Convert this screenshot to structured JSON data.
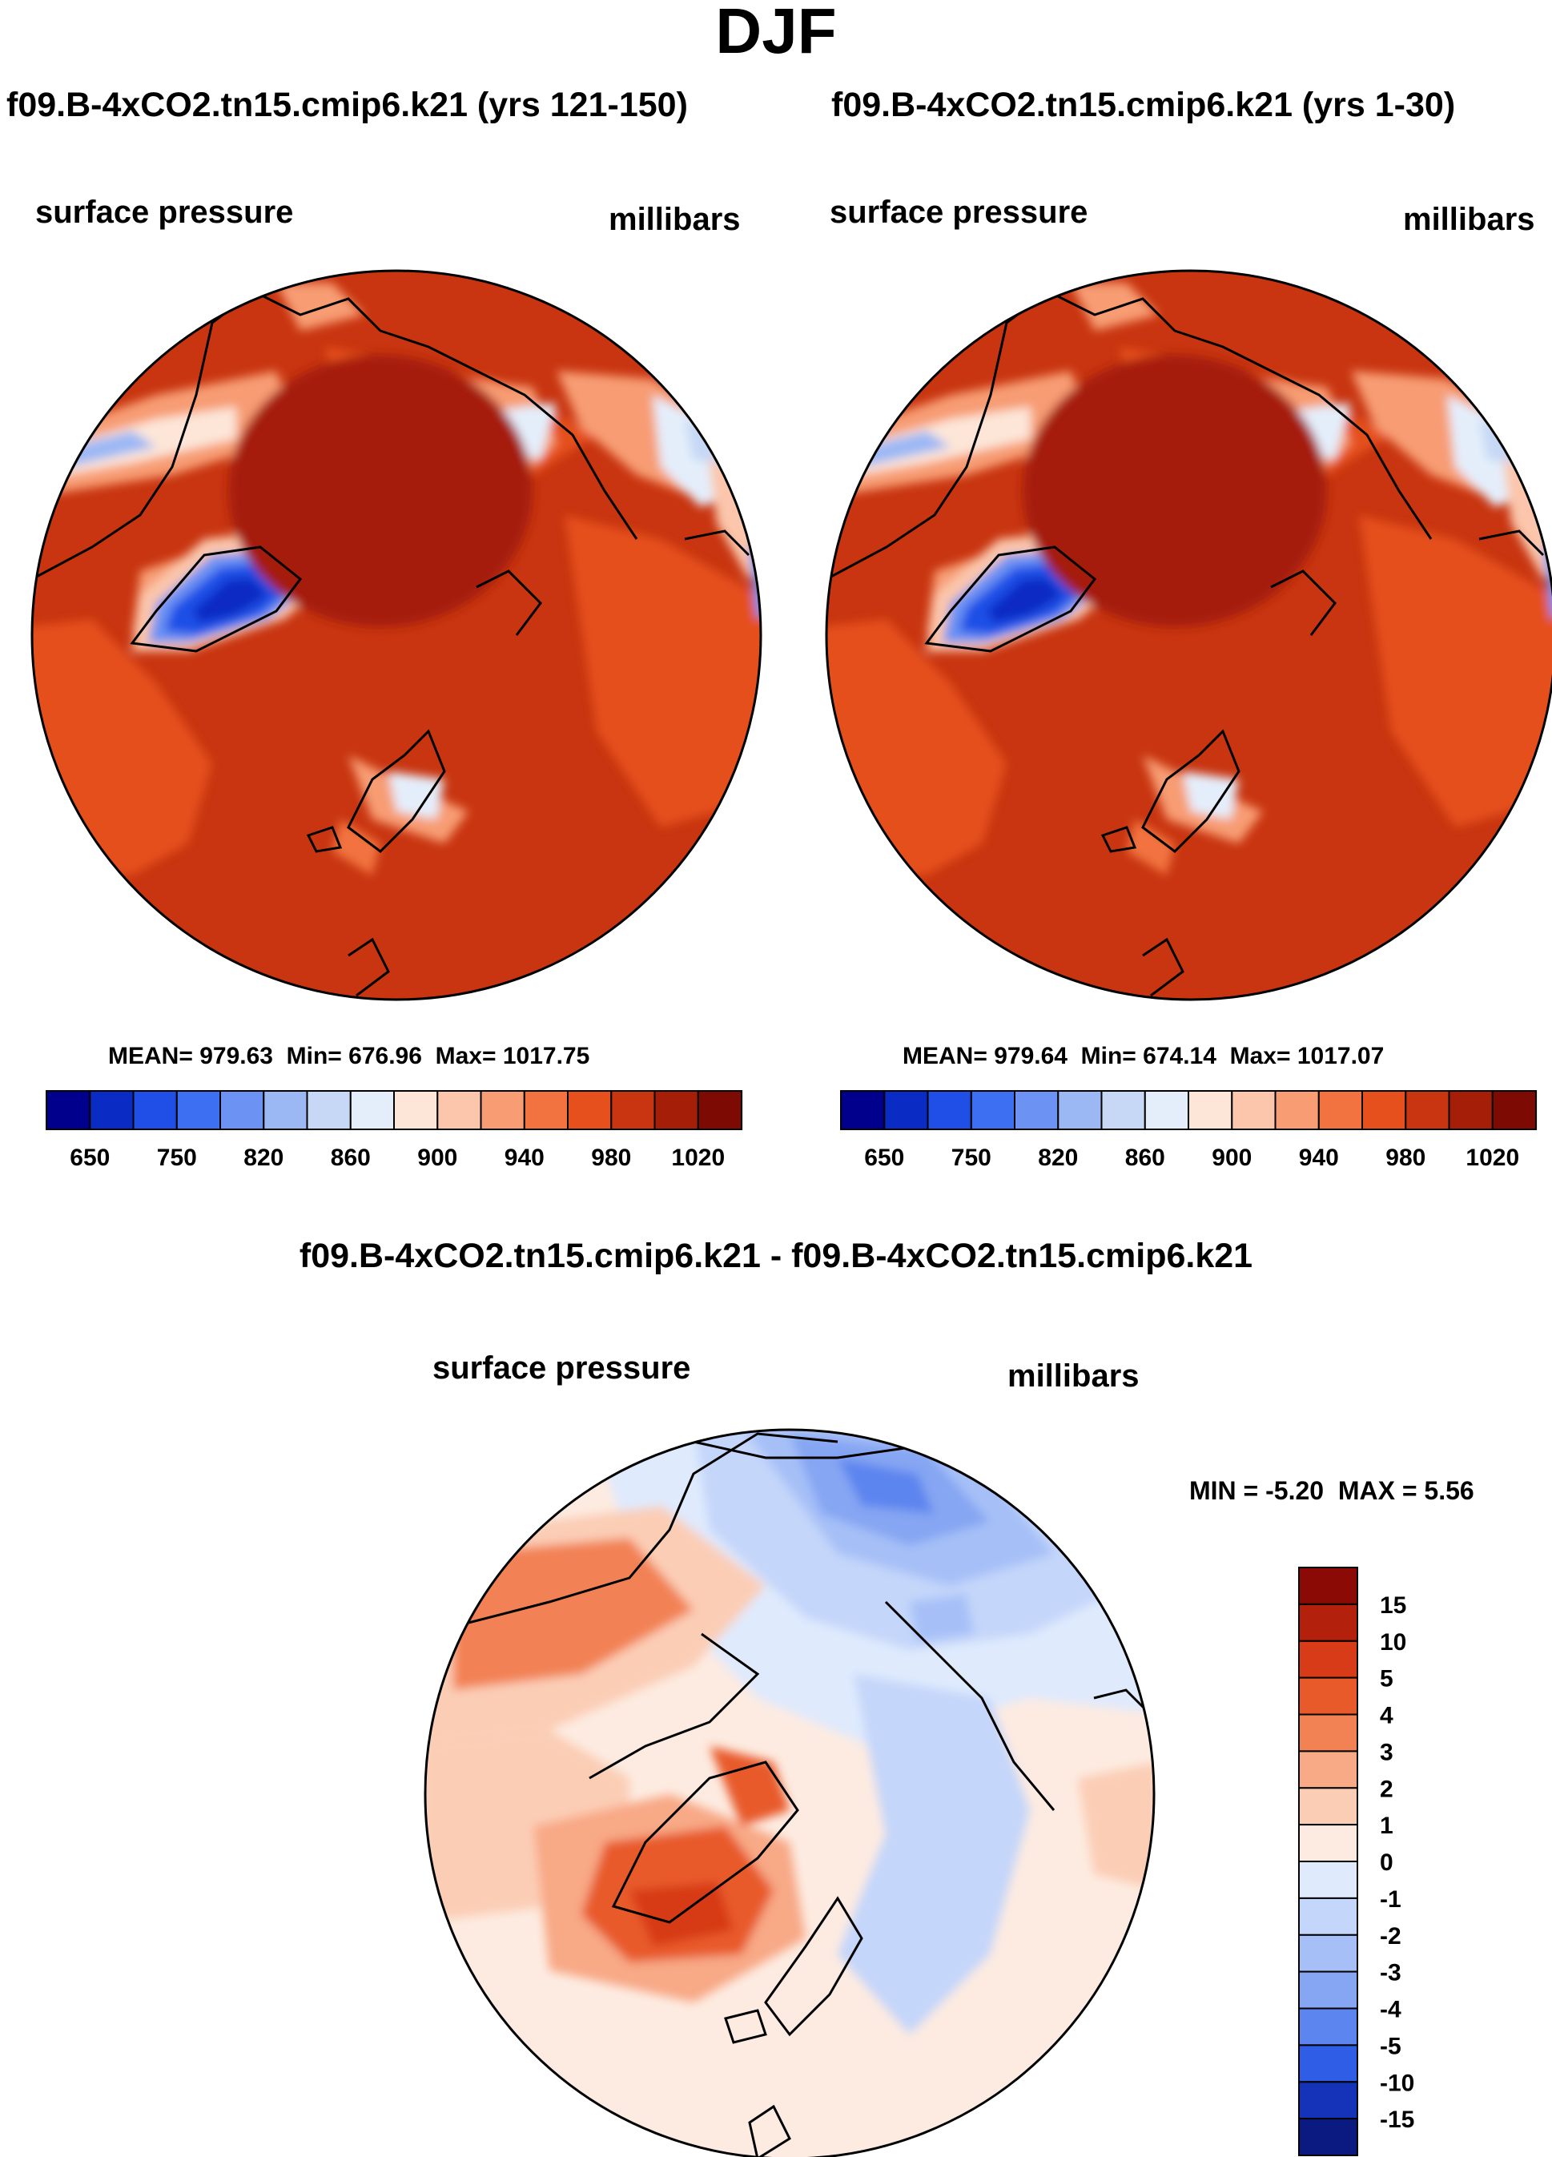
{
  "figure": {
    "title": "DJF"
  },
  "chart_data": [
    {
      "type": "polar-contour-map",
      "title": "f09.B-4xCO2.tn15.cmip6.k21 (yrs 121-150)",
      "variable": "surface pressure",
      "units": "millibars",
      "projection": "north polar stereographic",
      "stats": {
        "mean_label": "MEAN=",
        "mean": "979.63",
        "min_label": "Min=",
        "min": "676.96",
        "max_label": "Max=",
        "max": "1017.75"
      },
      "colorbar": {
        "tick_labels": [
          "650",
          "750",
          "820",
          "860",
          "900",
          "940",
          "980",
          "1020"
        ],
        "colors": [
          "#00008c",
          "#0a2cc4",
          "#1f4fe6",
          "#3d6ff2",
          "#6c93f4",
          "#9cb8f4",
          "#c6d8f6",
          "#e4eefb",
          "#fde6d8",
          "#fbc6ab",
          "#f79c73",
          "#f2733f",
          "#e5501d",
          "#c83510",
          "#a51f08",
          "#7d0b03"
        ]
      }
    },
    {
      "type": "polar-contour-map",
      "title": "f09.B-4xCO2.tn15.cmip6.k21 (yrs 1-30)",
      "variable": "surface pressure",
      "units": "millibars",
      "projection": "north polar stereographic",
      "stats": {
        "mean_label": "MEAN=",
        "mean": "979.64",
        "min_label": "Min=",
        "min": "674.14",
        "max_label": "Max=",
        "max": "1017.07"
      },
      "colorbar": {
        "tick_labels": [
          "650",
          "750",
          "820",
          "860",
          "900",
          "940",
          "980",
          "1020"
        ],
        "colors": [
          "#00008c",
          "#0a2cc4",
          "#1f4fe6",
          "#3d6ff2",
          "#6c93f4",
          "#9cb8f4",
          "#c6d8f6",
          "#e4eefb",
          "#fde6d8",
          "#fbc6ab",
          "#f79c73",
          "#f2733f",
          "#e5501d",
          "#c83510",
          "#a51f08",
          "#7d0b03"
        ]
      }
    },
    {
      "type": "polar-contour-map",
      "title": "f09.B-4xCO2.tn15.cmip6.k21 - f09.B-4xCO2.tn15.cmip6.k21",
      "variable": "surface pressure",
      "units": "millibars",
      "projection": "north polar stereographic",
      "stats": {
        "min_label": "MIN =",
        "min": "-5.20",
        "max_label": "MAX =",
        "max": "5.56"
      },
      "colorbar": {
        "tick_labels": [
          "15",
          "10",
          "5",
          "4",
          "3",
          "2",
          "1",
          "0",
          "-1",
          "-2",
          "-3",
          "-4",
          "-5",
          "-10",
          "-15"
        ],
        "colors": [
          "#8c0a05",
          "#b3200c",
          "#d73b17",
          "#e85a2a",
          "#f28254",
          "#f8a986",
          "#fbcdb5",
          "#fdebe1",
          "#dfeafd",
          "#c4d6fa",
          "#a6c0f7",
          "#86a6f3",
          "#5d85ef",
          "#2f5de6",
          "#1533b8",
          "#0a1a80"
        ]
      }
    }
  ]
}
